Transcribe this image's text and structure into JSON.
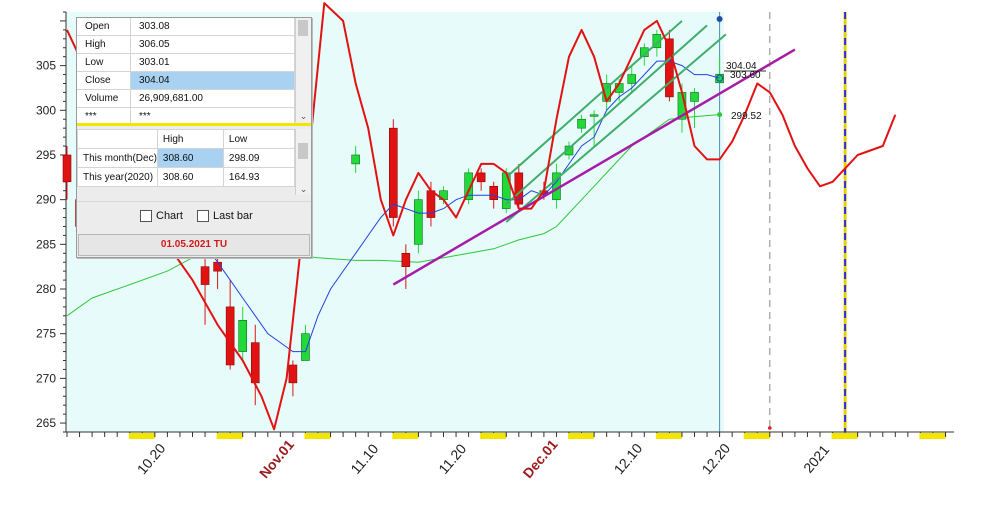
{
  "info_panel": {
    "ohlc": [
      {
        "key": "Open",
        "value": "303.08"
      },
      {
        "key": "High",
        "value": "306.05"
      },
      {
        "key": "Low",
        "value": "303.01"
      },
      {
        "key": "Close",
        "value": "304.04"
      },
      {
        "key": "Volume",
        "value": "26,909,681.00"
      },
      {
        "key": "***",
        "value": "***"
      }
    ],
    "selected_row": "Close",
    "hl_header": {
      "col1": "",
      "col2": "High",
      "col3": "Low"
    },
    "hl_rows": [
      {
        "period": "This month(Dec)",
        "high": "308.60",
        "low": "298.09"
      },
      {
        "period": "This year(2020)",
        "high": "308.60",
        "low": "164.93"
      }
    ],
    "checkboxes": [
      {
        "label": "Chart",
        "checked": false
      },
      {
        "label": "Last bar",
        "checked": false
      }
    ],
    "status_text": "01.05.2021 TU"
  },
  "price_tags": {
    "close": "304.04",
    "ma_fast": "303.60",
    "ma_slow": "299.52"
  },
  "chart_data": {
    "type": "candlestick",
    "y_ticks": [
      265,
      270,
      275,
      280,
      285,
      290,
      295,
      300,
      305
    ],
    "ylim": [
      264,
      311
    ],
    "x_labels": [
      {
        "text": "10.20",
        "day": 7,
        "month": false
      },
      {
        "text": "Nov.01",
        "day": 17,
        "month": true
      },
      {
        "text": "11.10",
        "day": 24,
        "month": false
      },
      {
        "text": "11.20",
        "day": 31,
        "month": false
      },
      {
        "text": "Dec.01",
        "day": 38,
        "month": true
      },
      {
        "text": "12.10",
        "day": 45,
        "month": false
      },
      {
        "text": "12.20",
        "day": 52,
        "month": false
      },
      {
        "text": "2021",
        "day": 60,
        "month": false
      }
    ],
    "candles": [
      {
        "d": 0,
        "o": 295,
        "c": 292,
        "h": 296,
        "l": 290
      },
      {
        "d": 1,
        "o": 290,
        "c": 287,
        "h": 291,
        "l": 285
      },
      {
        "d": 11,
        "o": 282.5,
        "c": 280.5,
        "h": 286,
        "l": 276
      },
      {
        "d": 12,
        "o": 283,
        "c": 282,
        "h": 287,
        "l": 280
      },
      {
        "d": 13,
        "o": 278,
        "c": 271.5,
        "h": 281,
        "l": 271
      },
      {
        "d": 14,
        "o": 273,
        "c": 276.5,
        "h": 278,
        "l": 272
      },
      {
        "d": 15,
        "o": 274,
        "c": 269.5,
        "h": 276,
        "l": 267
      },
      {
        "d": 18,
        "o": 271.5,
        "c": 269.5,
        "h": 272,
        "l": 268
      },
      {
        "d": 19,
        "o": 272,
        "c": 275,
        "h": 276,
        "l": 272
      },
      {
        "d": 23,
        "o": 294,
        "c": 295,
        "h": 296,
        "l": 293
      },
      {
        "d": 26,
        "o": 298,
        "c": 288,
        "h": 299,
        "l": 287
      },
      {
        "d": 27,
        "o": 284,
        "c": 282.5,
        "h": 285,
        "l": 280
      },
      {
        "d": 28,
        "o": 285,
        "c": 290,
        "h": 291,
        "l": 284
      },
      {
        "d": 29,
        "o": 291,
        "c": 288,
        "h": 292,
        "l": 287
      },
      {
        "d": 30,
        "o": 290,
        "c": 291,
        "h": 291.5,
        "l": 289.5
      },
      {
        "d": 32,
        "o": 290,
        "c": 293,
        "h": 293.5,
        "l": 289.5
      },
      {
        "d": 33,
        "o": 293,
        "c": 292,
        "h": 293.5,
        "l": 291
      },
      {
        "d": 34,
        "o": 291.5,
        "c": 290,
        "h": 292,
        "l": 289
      },
      {
        "d": 35,
        "o": 289,
        "c": 293,
        "h": 293.5,
        "l": 288.5
      },
      {
        "d": 36,
        "o": 293,
        "c": 289.5,
        "h": 294,
        "l": 289
      },
      {
        "d": 38,
        "o": 291,
        "c": 290.5,
        "h": 292,
        "l": 290
      },
      {
        "d": 39,
        "o": 290,
        "c": 293,
        "h": 294,
        "l": 289
      },
      {
        "d": 40,
        "o": 295,
        "c": 296,
        "h": 296.5,
        "l": 294.5
      },
      {
        "d": 41,
        "o": 298,
        "c": 299,
        "h": 299.5,
        "l": 297.5
      },
      {
        "d": 42,
        "o": 299.5,
        "c": 299.5,
        "h": 300,
        "l": 296
      },
      {
        "d": 43,
        "o": 301,
        "c": 303,
        "h": 304,
        "l": 300
      },
      {
        "d": 44,
        "o": 302,
        "c": 303,
        "h": 303.5,
        "l": 301
      },
      {
        "d": 45,
        "o": 303,
        "c": 304,
        "h": 305,
        "l": 302
      },
      {
        "d": 46,
        "o": 306,
        "c": 307,
        "h": 307.5,
        "l": 305
      },
      {
        "d": 47,
        "o": 307,
        "c": 308.5,
        "h": 309,
        "l": 306
      },
      {
        "d": 48,
        "o": 308,
        "c": 301.5,
        "h": 309,
        "l": 301
      },
      {
        "d": 49,
        "o": 299,
        "c": 302,
        "h": 303,
        "l": 297.5
      },
      {
        "d": 50,
        "o": 301,
        "c": 302,
        "h": 302.5,
        "l": 298
      },
      {
        "d": 52,
        "o": 303.08,
        "c": 304.04,
        "h": 306.05,
        "l": 303.01
      }
    ],
    "ma_fast": [
      [
        9,
        288
      ],
      [
        11,
        285
      ],
      [
        12,
        283
      ],
      [
        13,
        281
      ],
      [
        14,
        279
      ],
      [
        15,
        277
      ],
      [
        16,
        275
      ],
      [
        17,
        274
      ],
      [
        18,
        273
      ],
      [
        19,
        273
      ],
      [
        20,
        277
      ],
      [
        21,
        280
      ],
      [
        22,
        282
      ],
      [
        23,
        284
      ],
      [
        24,
        286
      ],
      [
        25,
        288
      ],
      [
        26,
        289.5
      ],
      [
        27,
        289
      ],
      [
        28,
        288.5
      ],
      [
        29,
        288.5
      ],
      [
        30,
        289
      ],
      [
        31,
        290
      ],
      [
        32,
        290.5
      ],
      [
        33,
        290.5
      ],
      [
        34,
        290.5
      ],
      [
        35,
        290
      ],
      [
        36,
        290
      ],
      [
        37,
        291
      ],
      [
        38,
        290.5
      ],
      [
        39,
        292
      ],
      [
        40,
        294
      ],
      [
        41,
        296
      ],
      [
        42,
        297
      ],
      [
        43,
        300
      ],
      [
        44,
        301.5
      ],
      [
        45,
        302.5
      ],
      [
        46,
        304
      ],
      [
        47,
        305.5
      ],
      [
        48,
        305.5
      ],
      [
        49,
        305
      ],
      [
        50,
        304
      ],
      [
        51,
        304
      ],
      [
        52,
        303.6
      ]
    ],
    "ma_slow": [
      [
        0,
        277
      ],
      [
        2,
        279
      ],
      [
        5,
        280.5
      ],
      [
        8,
        282
      ],
      [
        10,
        283.5
      ],
      [
        12,
        284
      ],
      [
        15,
        284
      ],
      [
        18,
        283.8
      ],
      [
        20,
        283.5
      ],
      [
        23,
        283.2
      ],
      [
        25,
        283.2
      ],
      [
        28,
        283
      ],
      [
        30,
        283.5
      ],
      [
        32,
        284
      ],
      [
        34,
        284.5
      ],
      [
        36,
        285.5
      ],
      [
        38,
        286.2
      ],
      [
        39,
        287
      ],
      [
        40,
        288.5
      ],
      [
        41,
        290
      ],
      [
        42,
        291.5
      ],
      [
        43,
        293
      ],
      [
        44,
        294.5
      ],
      [
        45,
        296
      ],
      [
        46,
        297
      ],
      [
        47,
        298
      ],
      [
        48,
        299
      ],
      [
        50,
        299.3
      ],
      [
        52,
        299.52
      ]
    ],
    "forecast": [
      [
        0,
        309
      ],
      [
        2,
        303
      ],
      [
        4,
        296
      ],
      [
        6,
        291
      ],
      [
        8,
        285
      ],
      [
        10,
        281
      ],
      [
        12,
        276
      ],
      [
        14,
        272
      ],
      [
        15.5,
        268
      ],
      [
        16.5,
        264.3
      ],
      [
        17.5,
        270
      ],
      [
        18.5,
        283
      ],
      [
        19.5,
        298
      ],
      [
        20.5,
        312
      ],
      [
        22,
        310
      ],
      [
        23,
        303
      ],
      [
        24,
        298
      ],
      [
        25,
        290
      ],
      [
        26,
        286
      ],
      [
        27,
        290
      ],
      [
        28,
        293
      ],
      [
        29,
        291
      ],
      [
        30,
        290
      ],
      [
        31,
        288
      ],
      [
        32,
        291
      ],
      [
        33,
        294
      ],
      [
        34,
        294
      ],
      [
        35,
        293
      ],
      [
        36,
        289
      ],
      [
        37,
        289
      ],
      [
        38,
        291
      ],
      [
        39,
        299
      ],
      [
        40,
        306
      ],
      [
        41,
        309
      ],
      [
        42,
        306
      ],
      [
        43,
        301
      ],
      [
        44,
        303
      ],
      [
        45,
        306
      ],
      [
        46,
        309
      ],
      [
        47,
        310
      ],
      [
        48,
        307
      ],
      [
        49,
        302
      ],
      [
        50,
        296
      ],
      [
        51,
        294.5
      ],
      [
        52,
        294.5
      ],
      [
        53,
        296.5
      ],
      [
        54,
        299.5
      ],
      [
        55,
        303
      ],
      [
        56,
        302
      ],
      [
        57,
        299.5
      ],
      [
        58,
        296
      ],
      [
        59,
        293.5
      ],
      [
        60,
        291.5
      ],
      [
        61,
        292
      ],
      [
        62,
        293.5
      ],
      [
        63,
        295
      ],
      [
        64,
        295.5
      ],
      [
        65,
        296
      ],
      [
        66,
        299.5
      ]
    ],
    "trendline": {
      "from": [
        26,
        280.5
      ],
      "to": [
        58,
        306.8
      ]
    },
    "channel": {
      "upper": {
        "from": [
          35,
          292.5
        ],
        "to": [
          49,
          310
        ]
      },
      "middle": {
        "from": [
          35,
          289.5
        ],
        "to": [
          51,
          309.5
        ]
      },
      "lower": {
        "from": [
          35,
          287.5
        ],
        "to": [
          52.5,
          308.5
        ]
      }
    },
    "vlines": [
      {
        "day": 52,
        "style": "solid-blue"
      },
      {
        "day": 56,
        "style": "dashed-grey"
      },
      {
        "day": 62,
        "style": "dashed-gold-blue"
      }
    ]
  }
}
